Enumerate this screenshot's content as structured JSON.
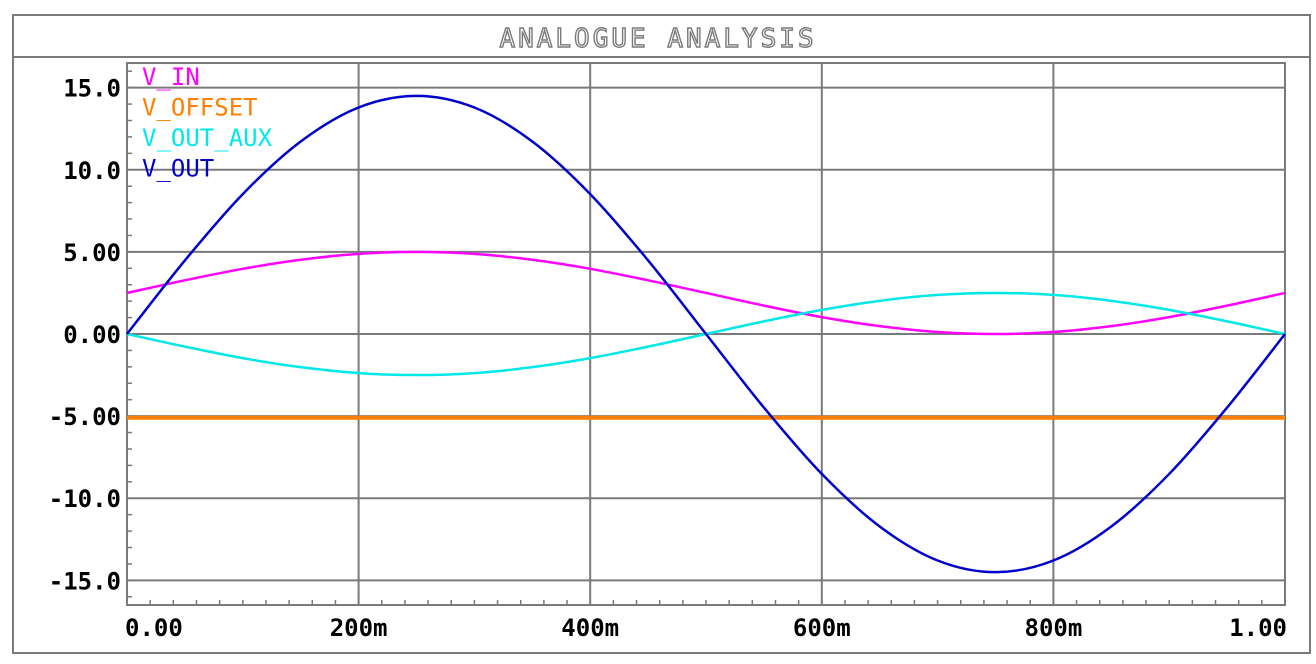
{
  "window": {
    "title": "ANALOGUE ANALYSIS"
  },
  "chart_data": {
    "type": "line",
    "title": "ANALOGUE ANALYSIS",
    "xlabel": "",
    "ylabel": "",
    "xlim": [
      0,
      1.0
    ],
    "ylim": [
      -16.5,
      16.5
    ],
    "grid": true,
    "legend_position": "top-left",
    "x_ticks": [
      {
        "value": 0.0,
        "label": "0.00"
      },
      {
        "value": 0.2,
        "label": "200m"
      },
      {
        "value": 0.4,
        "label": "400m"
      },
      {
        "value": 0.6,
        "label": "600m"
      },
      {
        "value": 0.8,
        "label": "800m"
      },
      {
        "value": 1.0,
        "label": "1.00"
      }
    ],
    "y_ticks": [
      {
        "value": 15,
        "label": "15.0"
      },
      {
        "value": 10,
        "label": "10.0"
      },
      {
        "value": 5,
        "label": "5.00"
      },
      {
        "value": 0,
        "label": "0.00"
      },
      {
        "value": -5,
        "label": "-5.00"
      },
      {
        "value": -10,
        "label": "-10.0"
      },
      {
        "value": -15,
        "label": "-15.0"
      }
    ],
    "x": [
      0.0,
      0.05,
      0.1,
      0.15,
      0.2,
      0.25,
      0.3,
      0.35,
      0.4,
      0.45,
      0.5,
      0.55,
      0.6,
      0.65,
      0.7,
      0.75,
      0.8,
      0.85,
      0.9,
      0.95,
      1.0
    ],
    "series": [
      {
        "name": "V_IN",
        "color": "#ff00ff",
        "values": [
          2.5,
          3.27,
          3.97,
          4.52,
          4.88,
          5.0,
          4.88,
          4.52,
          3.97,
          3.27,
          2.5,
          1.73,
          1.03,
          0.48,
          0.12,
          0.0,
          0.12,
          0.48,
          1.03,
          1.73,
          2.5
        ]
      },
      {
        "name": "V_OFFSET",
        "color": "#ff8000",
        "values": [
          -5.1,
          -5.1,
          -5.1,
          -5.1,
          -5.1,
          -5.1,
          -5.1,
          -5.1,
          -5.1,
          -5.1,
          -5.1,
          -5.1,
          -5.1,
          -5.1,
          -5.1,
          -5.1,
          -5.1,
          -5.1,
          -5.1,
          -5.1,
          -5.1
        ]
      },
      {
        "name": "V_OUT_AUX",
        "color": "#00e8e8",
        "values": [
          0.0,
          -0.77,
          -1.47,
          -2.02,
          -2.38,
          -2.5,
          -2.38,
          -2.02,
          -1.47,
          -0.77,
          0.0,
          0.77,
          1.47,
          2.02,
          2.38,
          2.5,
          2.38,
          2.02,
          1.47,
          0.77,
          0.0
        ]
      },
      {
        "name": "V_OUT",
        "color": "#0000cc",
        "values": [
          0.0,
          4.48,
          8.52,
          11.72,
          13.79,
          14.5,
          13.79,
          11.72,
          8.52,
          4.48,
          0.0,
          -4.48,
          -8.52,
          -11.72,
          -13.79,
          -14.5,
          -13.79,
          -11.72,
          -8.52,
          -4.48,
          0.0
        ]
      }
    ]
  }
}
